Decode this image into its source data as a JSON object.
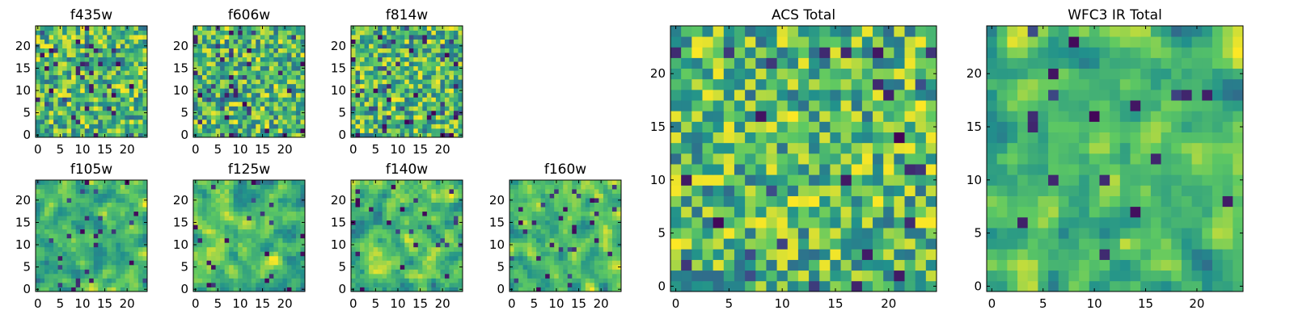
{
  "figure": {
    "description_note": "",
    "colormap": [
      "#440154",
      "#3b528b",
      "#21918c",
      "#5ec962",
      "#fde725"
    ]
  },
  "chart_data": [
    {
      "type": "heatmap",
      "title": "f435w",
      "xlim": [
        -0.5,
        24.5
      ],
      "ylim": [
        -0.5,
        24.5
      ],
      "xticks": [
        "0",
        "5",
        "10",
        "15",
        "20"
      ],
      "yticks": [
        "0",
        "5",
        "10",
        "15",
        "20"
      ],
      "grid_size": [
        25,
        25
      ],
      "value_range": [
        0,
        1
      ],
      "seed": 11,
      "smooth": 0,
      "dark": 0.06
    },
    {
      "type": "heatmap",
      "title": "f606w",
      "xlim": [
        -0.5,
        24.5
      ],
      "ylim": [
        -0.5,
        24.5
      ],
      "xticks": [
        "0",
        "5",
        "10",
        "15",
        "20"
      ],
      "yticks": [
        "0",
        "5",
        "10",
        "15",
        "20"
      ],
      "grid_size": [
        25,
        25
      ],
      "value_range": [
        0,
        1
      ],
      "seed": 23,
      "smooth": 0,
      "dark": 0.06
    },
    {
      "type": "heatmap",
      "title": "f814w",
      "xlim": [
        -0.5,
        24.5
      ],
      "ylim": [
        -0.5,
        24.5
      ],
      "xticks": [
        "0",
        "5",
        "10",
        "15",
        "20"
      ],
      "yticks": [
        "0",
        "5",
        "10",
        "15",
        "20"
      ],
      "grid_size": [
        25,
        25
      ],
      "value_range": [
        0,
        1
      ],
      "seed": 37,
      "smooth": 0,
      "dark": 0.06
    },
    {
      "type": "heatmap",
      "title": "f105w",
      "xlim": [
        -0.5,
        24.5
      ],
      "ylim": [
        -0.5,
        24.5
      ],
      "xticks": [
        "0",
        "5",
        "10",
        "15",
        "20"
      ],
      "yticks": [
        "0",
        "5",
        "10",
        "15",
        "20"
      ],
      "grid_size": [
        25,
        25
      ],
      "value_range": [
        0,
        1
      ],
      "seed": 41,
      "smooth": 1,
      "dark": 0.04
    },
    {
      "type": "heatmap",
      "title": "f125w",
      "xlim": [
        -0.5,
        24.5
      ],
      "ylim": [
        -0.5,
        24.5
      ],
      "xticks": [
        "0",
        "5",
        "10",
        "15",
        "20"
      ],
      "yticks": [
        "0",
        "5",
        "10",
        "15",
        "20"
      ],
      "grid_size": [
        25,
        25
      ],
      "value_range": [
        0,
        1
      ],
      "seed": 53,
      "smooth": 1,
      "dark": 0.04
    },
    {
      "type": "heatmap",
      "title": "f140w",
      "xlim": [
        -0.5,
        24.5
      ],
      "ylim": [
        -0.5,
        24.5
      ],
      "xticks": [
        "0",
        "5",
        "10",
        "15",
        "20"
      ],
      "yticks": [
        "0",
        "5",
        "10",
        "15",
        "20"
      ],
      "grid_size": [
        25,
        25
      ],
      "value_range": [
        0,
        1
      ],
      "seed": 67,
      "smooth": 1,
      "dark": 0.04
    },
    {
      "type": "heatmap",
      "title": "f160w",
      "xlim": [
        -0.5,
        24.5
      ],
      "ylim": [
        -0.5,
        24.5
      ],
      "xticks": [
        "0",
        "5",
        "10",
        "15",
        "20"
      ],
      "yticks": [
        "0",
        "5",
        "10",
        "15",
        "20"
      ],
      "grid_size": [
        25,
        25
      ],
      "value_range": [
        0,
        1
      ],
      "seed": 79,
      "smooth": 1,
      "dark": 0.04
    },
    {
      "type": "heatmap",
      "title": "ACS Total",
      "xlim": [
        -0.5,
        24.5
      ],
      "ylim": [
        -0.5,
        24.5
      ],
      "xticks": [
        "0",
        "5",
        "10",
        "15",
        "20"
      ],
      "yticks": [
        "0",
        "5",
        "10",
        "15",
        "20"
      ],
      "grid_size": [
        25,
        25
      ],
      "value_range": [
        0,
        1
      ],
      "seed": 97,
      "smooth": 0,
      "dark": 0.03
    },
    {
      "type": "heatmap",
      "title": "WFC3 IR Total",
      "xlim": [
        -0.5,
        24.5
      ],
      "ylim": [
        -0.5,
        24.5
      ],
      "xticks": [
        "0",
        "5",
        "10",
        "15",
        "20"
      ],
      "yticks": [
        "0",
        "5",
        "10",
        "15",
        "20"
      ],
      "grid_size": [
        25,
        25
      ],
      "value_range": [
        0,
        1
      ],
      "seed": 113,
      "smooth": 1,
      "dark": 0.025
    }
  ]
}
